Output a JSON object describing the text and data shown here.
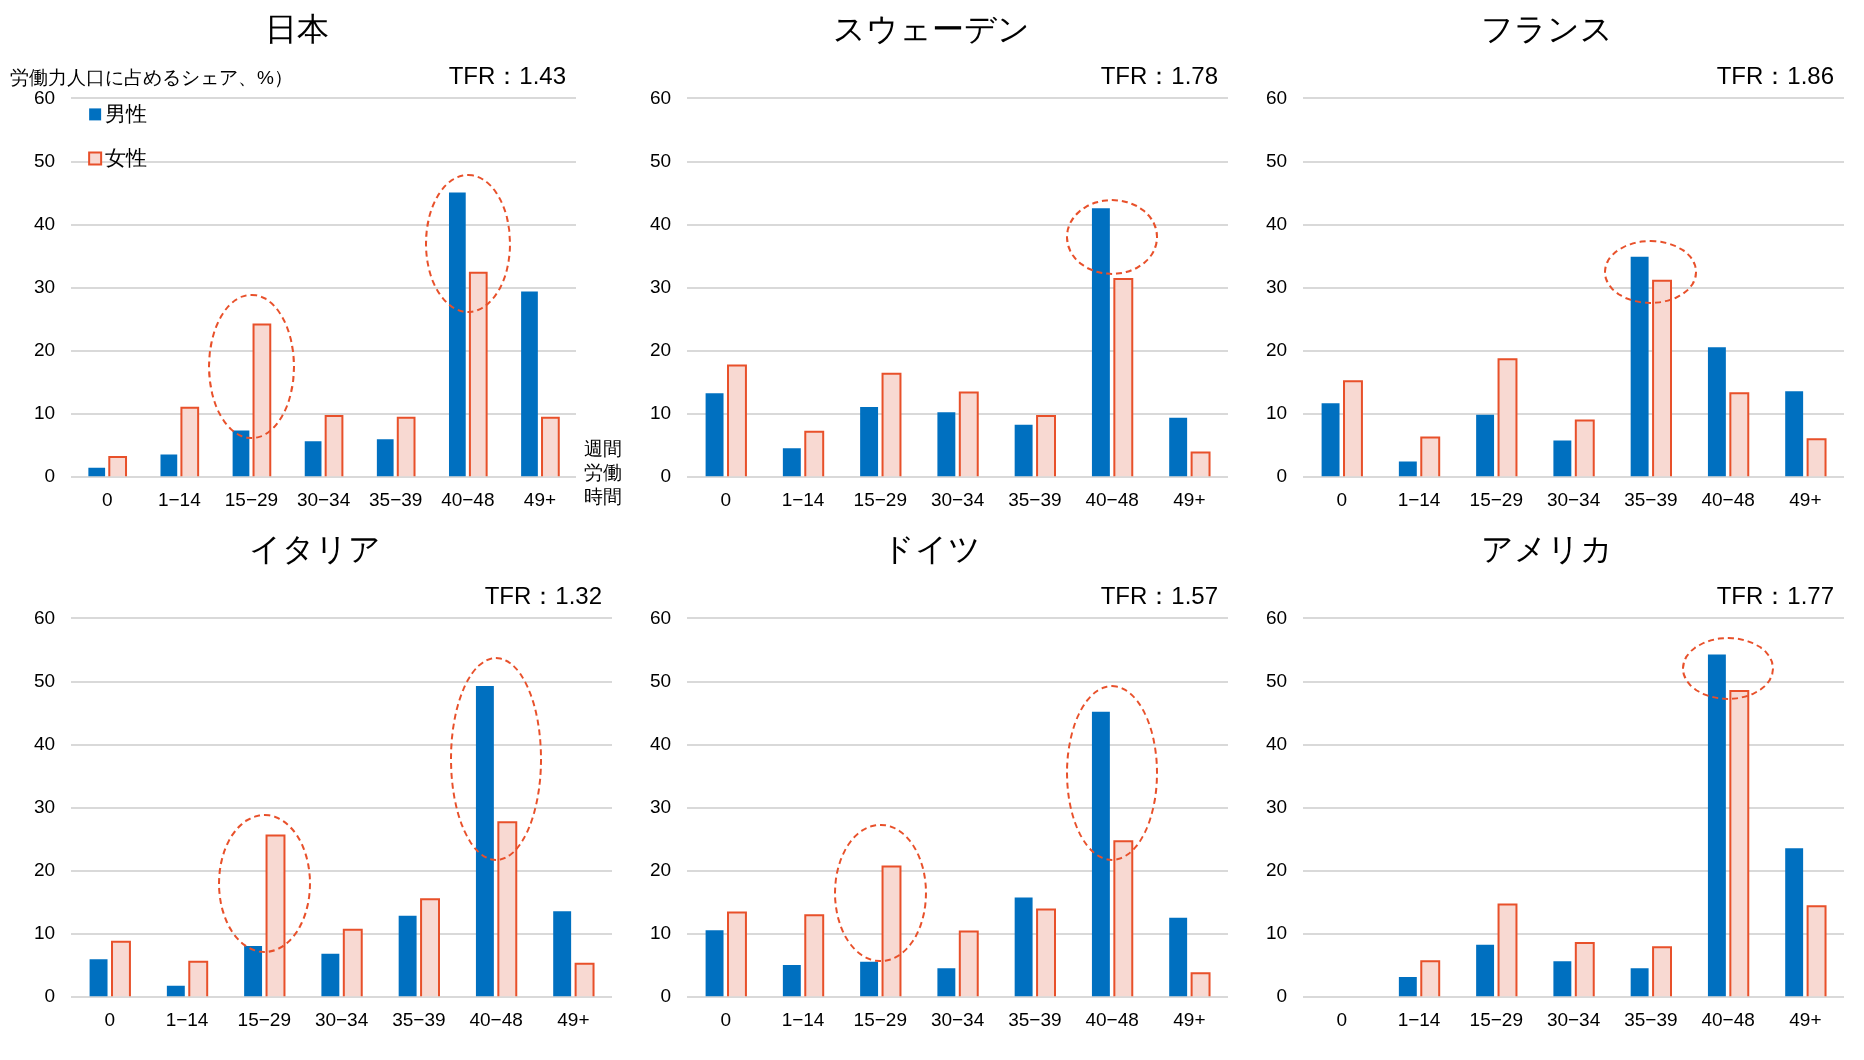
{
  "chart_data": [
    {
      "type": "bar",
      "title": "日本",
      "ylabel": "労働力人口に占めるシェア、%）",
      "xlabel": "週間労働時間",
      "annotations": [
        "TFR：1.43"
      ],
      "legend": "top left",
      "grid": "y",
      "ylim": [
        0,
        60
      ],
      "yticks": [
        0,
        10,
        20,
        30,
        40,
        50,
        60
      ],
      "categories": [
        "0",
        "1−14",
        "15−29",
        "30−34",
        "35−39",
        "40−48",
        "49+"
      ],
      "series": [
        {
          "name": "男性",
          "color": "#0070c0",
          "values": [
            1.5,
            3.6,
            7.4,
            5.7,
            6.0,
            45.1,
            29.4
          ]
        },
        {
          "name": "女性",
          "color": "#f8d9d2",
          "values": [
            3.2,
            11.0,
            24.2,
            9.7,
            9.4,
            32.4,
            9.4
          ]
        }
      ]
    },
    {
      "type": "bar",
      "title": "スウェーデン",
      "annotations": [
        "TFR：1.78"
      ],
      "grid": "y",
      "ylim": [
        0,
        60
      ],
      "yticks": [
        0,
        10,
        20,
        30,
        40,
        50,
        60
      ],
      "categories": [
        "0",
        "1−14",
        "15−29",
        "30−34",
        "35−39",
        "40−48",
        "49+"
      ],
      "series": [
        {
          "color": "#0070c0",
          "values": [
            13.3,
            4.6,
            11.1,
            10.3,
            8.3,
            42.6,
            9.4
          ]
        },
        {
          "color": "#f8d9d2",
          "values": [
            17.7,
            7.2,
            16.4,
            13.4,
            9.7,
            31.4,
            3.9
          ]
        }
      ]
    },
    {
      "type": "bar",
      "title": "フランス",
      "annotations": [
        "TFR：1.86"
      ],
      "grid": "y",
      "ylim": [
        0,
        60
      ],
      "yticks": [
        0,
        10,
        20,
        30,
        40,
        50,
        60
      ],
      "categories": [
        "0",
        "1−14",
        "15−29",
        "30−34",
        "35−39",
        "40−48",
        "49+"
      ],
      "series": [
        {
          "color": "#0070c0",
          "values": [
            11.7,
            2.5,
            9.9,
            5.8,
            34.9,
            20.6,
            13.6
          ]
        },
        {
          "color": "#f8d9d2",
          "values": [
            15.2,
            6.3,
            18.7,
            9.0,
            31.1,
            13.3,
            6.0
          ]
        }
      ]
    },
    {
      "type": "bar",
      "title": "イタリア",
      "annotations": [
        "TFR：1.32"
      ],
      "grid": "y",
      "ylim": [
        0,
        60
      ],
      "yticks": [
        0,
        10,
        20,
        30,
        40,
        50,
        60
      ],
      "categories": [
        "0",
        "1−14",
        "15−29",
        "30−34",
        "35−39",
        "40−48",
        "49+"
      ],
      "series": [
        {
          "color": "#0070c0",
          "values": [
            6.0,
            1.8,
            8.1,
            6.9,
            12.9,
            49.3,
            13.6
          ]
        },
        {
          "color": "#f8d9d2",
          "values": [
            8.8,
            5.6,
            25.6,
            10.7,
            15.5,
            27.7,
            5.3
          ]
        }
      ]
    },
    {
      "type": "bar",
      "title": "ドイツ",
      "annotations": [
        "TFR：1.57"
      ],
      "grid": "y",
      "ylim": [
        0,
        60
      ],
      "yticks": [
        0,
        10,
        20,
        30,
        40,
        50,
        60
      ],
      "categories": [
        "0",
        "1−14",
        "15−29",
        "30−34",
        "35−39",
        "40−48",
        "49+"
      ],
      "series": [
        {
          "color": "#0070c0",
          "values": [
            10.6,
            5.1,
            5.6,
            4.6,
            15.8,
            45.2,
            12.6
          ]
        },
        {
          "color": "#f8d9d2",
          "values": [
            13.4,
            13.0,
            20.7,
            10.4,
            13.9,
            24.7,
            3.8
          ]
        }
      ]
    },
    {
      "type": "bar",
      "title": "アメリカ",
      "annotations": [
        "TFR：1.77"
      ],
      "grid": "y",
      "ylim": [
        0,
        60
      ],
      "yticks": [
        0,
        10,
        20,
        30,
        40,
        50,
        60
      ],
      "categories": [
        "0",
        "1−14",
        "15−29",
        "30−34",
        "35−39",
        "40−48",
        "49+"
      ],
      "series": [
        {
          "color": "#0070c0",
          "values": [
            0,
            3.2,
            8.3,
            5.7,
            4.6,
            54.3,
            23.6
          ]
        },
        {
          "color": "#f8d9d2",
          "values": [
            0,
            5.7,
            14.7,
            8.6,
            7.9,
            48.5,
            14.4
          ]
        }
      ]
    }
  ]
}
